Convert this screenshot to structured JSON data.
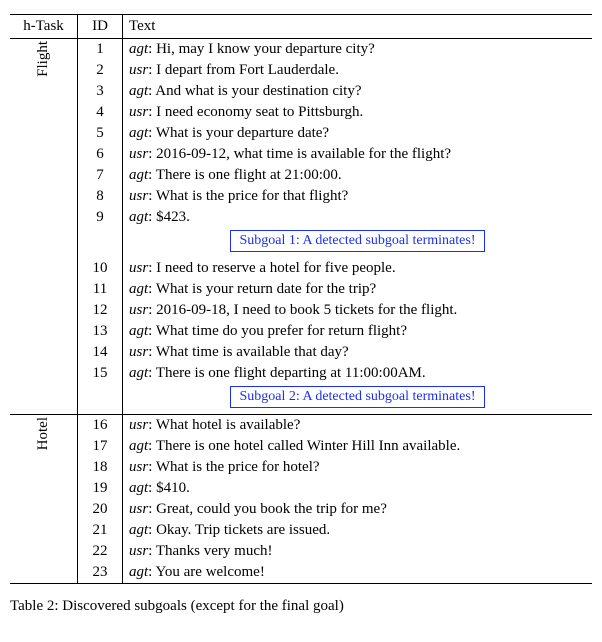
{
  "header": {
    "htask": "h-Task",
    "id": "ID",
    "text": "Text"
  },
  "tasks": [
    {
      "label": "Flight"
    },
    {
      "label": "Hotel"
    }
  ],
  "rows": [
    {
      "id": "1",
      "sp": "agt",
      "t": "Hi, may I know your departure city?"
    },
    {
      "id": "2",
      "sp": "usr",
      "t": "I depart from Fort Lauderdale."
    },
    {
      "id": "3",
      "sp": "agt",
      "t": "And what is your destination city?"
    },
    {
      "id": "4",
      "sp": "usr",
      "t": "I need economy seat to Pittsburgh."
    },
    {
      "id": "5",
      "sp": "agt",
      "t": "What is your departure date?"
    },
    {
      "id": "6",
      "sp": "usr",
      "t": "2016-09-12, what time is available for the flight?"
    },
    {
      "id": "7",
      "sp": "agt",
      "t": "There is one flight at 21:00:00."
    },
    {
      "id": "8",
      "sp": "usr",
      "t": "What is the price for that flight?"
    },
    {
      "id": "9",
      "sp": "agt",
      "t": "$423."
    },
    {
      "id": "10",
      "sp": "usr",
      "t": "I need to reserve a hotel for five people."
    },
    {
      "id": "11",
      "sp": "agt",
      "t": "What is your return date for the trip?"
    },
    {
      "id": "12",
      "sp": "usr",
      "t": "2016-09-18, I need to book 5 tickets for the flight."
    },
    {
      "id": "13",
      "sp": "agt",
      "t": "What time do you prefer for return flight?"
    },
    {
      "id": "14",
      "sp": "usr",
      "t": "What time is available that day?"
    },
    {
      "id": "15",
      "sp": "agt",
      "t": "There is one flight departing at 11:00:00AM."
    },
    {
      "id": "16",
      "sp": "usr",
      "t": "What hotel is available?"
    },
    {
      "id": "17",
      "sp": "agt",
      "t": "There is one hotel called Winter Hill Inn available."
    },
    {
      "id": "18",
      "sp": "usr",
      "t": "What is the price for hotel?"
    },
    {
      "id": "19",
      "sp": "agt",
      "t": "$410."
    },
    {
      "id": "20",
      "sp": "usr",
      "t": "Great, could you book the trip for me?"
    },
    {
      "id": "21",
      "sp": "agt",
      "t": "Okay. Trip tickets are issued."
    },
    {
      "id": "22",
      "sp": "usr",
      "t": "Thanks very much!"
    },
    {
      "id": "23",
      "sp": "agt",
      "t": "You are welcome!"
    }
  ],
  "subgoals": [
    "Subgoal 1: A detected subgoal terminates!",
    "Subgoal 2: A detected subgoal terminates!"
  ],
  "caption": "Table 2: Discovered subgoals (except for the final goal)",
  "style": {
    "subgoal_border_color": "#1b2ff2",
    "subgoal_text_color": "#1b2ff2",
    "font_family": "Times New Roman",
    "font_size_pt": 11,
    "background": "#ffffff"
  }
}
